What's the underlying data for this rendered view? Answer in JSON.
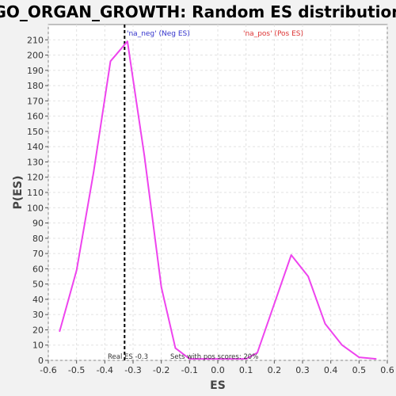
{
  "chart_data": {
    "type": "line",
    "title": "GO_ORGAN_GROWTH: Random ES distribution",
    "xlabel": "ES",
    "ylabel": "P(ES)",
    "xlim": [
      -0.6,
      0.6
    ],
    "ylim": [
      0,
      220
    ],
    "xticks": [
      -0.6,
      -0.5,
      -0.4,
      -0.3,
      -0.2,
      -0.1,
      0.0,
      0.1,
      0.2,
      0.3,
      0.4,
      0.5,
      0.6
    ],
    "xtick_labels": [
      "-0.6",
      "-0.5",
      "-0.4",
      "-0.3",
      "-0.2",
      "-0.1",
      "0.0",
      "0.1",
      "0.2",
      "0.3",
      "0.4",
      "0.5",
      "0.6"
    ],
    "yticks": [
      0,
      10,
      20,
      30,
      40,
      50,
      60,
      70,
      80,
      90,
      100,
      110,
      120,
      130,
      140,
      150,
      160,
      170,
      180,
      190,
      200,
      210
    ],
    "ytick_labels": [
      "0",
      "10",
      "20",
      "30",
      "40",
      "50",
      "60",
      "70",
      "80",
      "90",
      "100",
      "110",
      "120",
      "130",
      "140",
      "150",
      "160",
      "170",
      "180",
      "190",
      "200",
      "210"
    ],
    "grid": true,
    "series": [
      {
        "color": "#ee44ee",
        "x": [
          -0.56,
          -0.5,
          -0.44,
          -0.38,
          -0.32,
          -0.26,
          -0.2,
          -0.15,
          -0.1,
          -0.03,
          0.1,
          0.14,
          0.2,
          0.26,
          0.32,
          0.38,
          0.44,
          0.5,
          0.56
        ],
        "y": [
          19,
          59,
          123,
          196,
          209,
          134,
          48,
          8,
          1,
          1,
          1,
          5,
          37,
          69,
          55,
          24,
          10,
          2,
          1
        ]
      }
    ],
    "reference_line": {
      "x": -0.33,
      "style": "dashed",
      "color": "#000000"
    },
    "legend": [
      {
        "text": "'na_neg' (Neg ES)",
        "color": "#3333cc"
      },
      {
        "text": "'na_pos' (Pos ES)",
        "color": "#dd3333"
      }
    ],
    "annotations": [
      {
        "text": "Real ES -0.3",
        "x": -0.33
      },
      {
        "text": "Sets with pos scores: 20%",
        "x": -0.04
      }
    ],
    "colors": {
      "background": "#f2f2f2",
      "plot_background": "#ffffff",
      "grid": "#e2e2e2",
      "line": "#ee44ee"
    }
  }
}
